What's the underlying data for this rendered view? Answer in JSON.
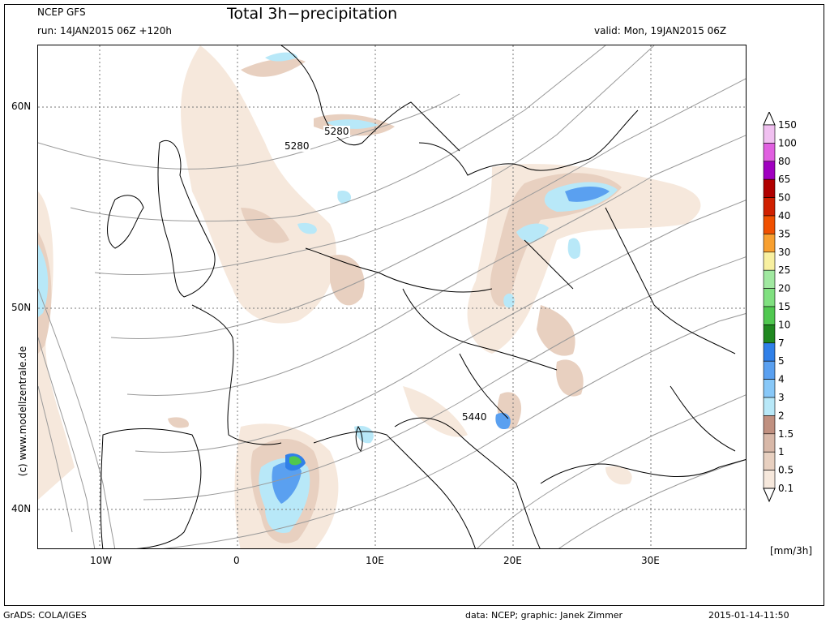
{
  "header": {
    "model": "NCEP GFS",
    "run": "run: 14JAN2015 06Z +120h",
    "title": "Total 3h−precipitation",
    "valid": "valid: Mon, 19JAN2015 06Z"
  },
  "footer": {
    "left": "GrADS: COLA/IGES",
    "data": "data: NCEP; graphic: Janek Zimmer",
    "timestamp": "2015-01-14-11:50"
  },
  "watermark": "(c) www.modellzentrale.de",
  "axes": {
    "lon_labels": [
      "10W",
      "0",
      "10E",
      "20E",
      "30E"
    ],
    "lat_labels": [
      "60N",
      "50N",
      "40N"
    ]
  },
  "contours": [
    "5280",
    "5280",
    "5440"
  ],
  "legend": {
    "unit": "[mm/3h]",
    "levels": [
      "150",
      "100",
      "80",
      "65",
      "50",
      "40",
      "35",
      "30",
      "25",
      "20",
      "15",
      "10",
      "7",
      "5",
      "4",
      "3",
      "2",
      "1.5",
      "1",
      "0.5",
      "0.1"
    ],
    "colors": [
      "#f0c0f0",
      "#e060e0",
      "#a000c0",
      "#b00000",
      "#d02000",
      "#f05000",
      "#f8a030",
      "#f8f0a0",
      "#a0e8a0",
      "#80e080",
      "#50c850",
      "#208820",
      "#3080e8",
      "#5aa0f0",
      "#88c8f8",
      "#b8e8f8",
      "#c09080",
      "#d8b8a8",
      "#e8d0c0",
      "#f6e8dc"
    ]
  }
}
